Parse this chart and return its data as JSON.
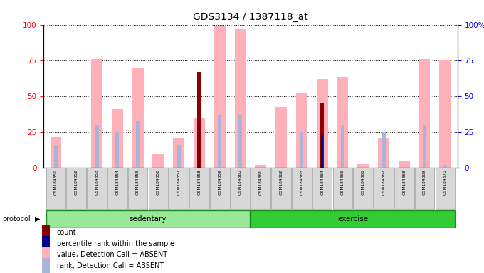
{
  "title": "GDS3134 / 1387118_at",
  "samples": [
    "GSM184851",
    "GSM184852",
    "GSM184853",
    "GSM184854",
    "GSM184855",
    "GSM184856",
    "GSM184857",
    "GSM184858",
    "GSM184859",
    "GSM184860",
    "GSM184861",
    "GSM184862",
    "GSM184863",
    "GSM184864",
    "GSM184865",
    "GSM184866",
    "GSM184867",
    "GSM184868",
    "GSM184869",
    "GSM184870"
  ],
  "value_absent": [
    22,
    0,
    76,
    41,
    70,
    10,
    21,
    35,
    99,
    97,
    2,
    42,
    52,
    62,
    63,
    3,
    21,
    5,
    76,
    75
  ],
  "rank_absent": [
    16,
    0,
    30,
    25,
    33,
    0,
    16,
    0,
    37,
    37,
    0,
    0,
    25,
    0,
    30,
    0,
    25,
    0,
    30,
    2
  ],
  "count": [
    0,
    0,
    0,
    0,
    0,
    0,
    0,
    67,
    0,
    0,
    0,
    0,
    0,
    45,
    0,
    0,
    0,
    0,
    0,
    0
  ],
  "percentile": [
    0,
    0,
    0,
    0,
    0,
    0,
    0,
    29,
    0,
    0,
    0,
    0,
    0,
    23,
    0,
    0,
    0,
    0,
    0,
    0
  ],
  "color_value_absent": "#ffb0b8",
  "color_rank_absent": "#aab4d8",
  "color_count": "#8b0000",
  "color_percentile": "#00008b",
  "ylim": [
    0,
    100
  ],
  "legend_items": [
    {
      "label": "count",
      "color": "#8b0000"
    },
    {
      "label": "percentile rank within the sample",
      "color": "#00008b"
    },
    {
      "label": "value, Detection Call = ABSENT",
      "color": "#ffb0b8"
    },
    {
      "label": "rank, Detection Call = ABSENT",
      "color": "#aab4d8"
    }
  ]
}
